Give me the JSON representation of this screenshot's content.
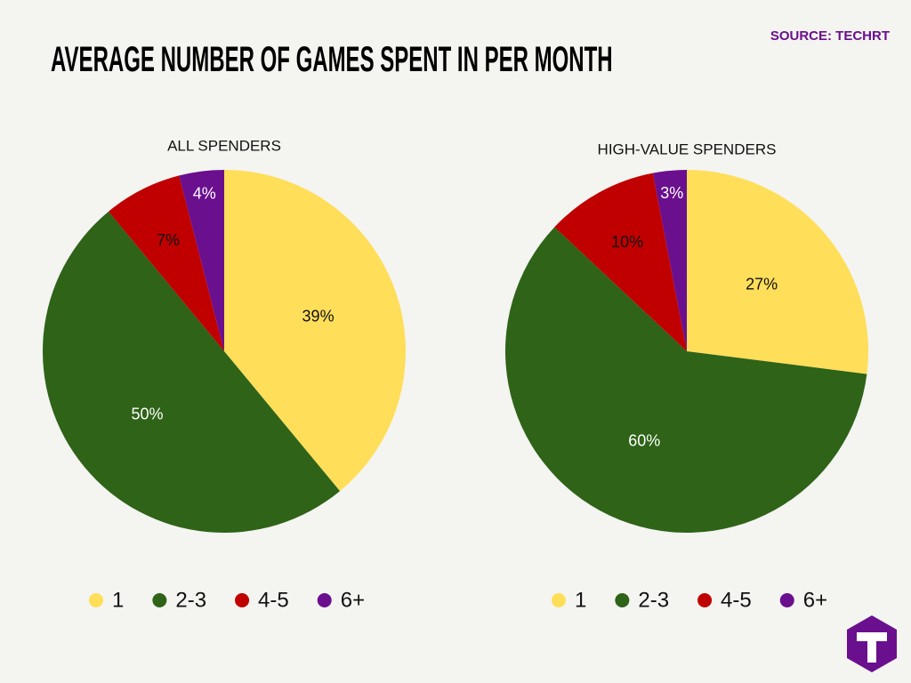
{
  "title": "AVERAGE NUMBER OF GAMES SPENT IN PER MONTH",
  "source": "SOURCE: TECHRT",
  "chart_data": [
    {
      "type": "pie",
      "title": "ALL SPENDERS",
      "categories": [
        "1",
        "2-3",
        "4-5",
        "6+"
      ],
      "values": [
        39,
        50,
        7,
        4
      ],
      "value_labels": [
        "39%",
        "50%",
        "7%",
        "4%"
      ],
      "colors": [
        "#ffde59",
        "#2e6318",
        "#c00000",
        "#6a0f8e"
      ]
    },
    {
      "type": "pie",
      "title": "HIGH-VALUE SPENDERS",
      "categories": [
        "1",
        "2-3",
        "4-5",
        "6+"
      ],
      "values": [
        27,
        60,
        10,
        3
      ],
      "value_labels": [
        "27%",
        "60%",
        "10%",
        "3%"
      ],
      "colors": [
        "#ffde59",
        "#2e6318",
        "#c00000",
        "#6a0f8e"
      ]
    }
  ]
}
